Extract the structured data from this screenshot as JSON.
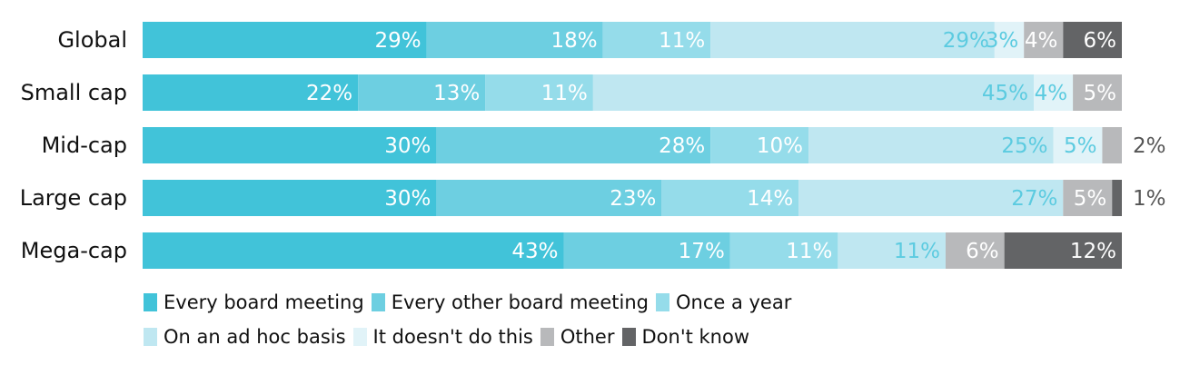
{
  "chart_data": {
    "type": "bar",
    "orientation": "horizontal",
    "stacked": true,
    "categories": [
      "Global",
      "Small cap",
      "Mid-cap",
      "Large cap",
      "Mega-cap"
    ],
    "series": [
      {
        "name": "Every board meeting",
        "color": "#41c3d9",
        "values": [
          29,
          22,
          30,
          30,
          43
        ],
        "labels": [
          "29%",
          "22%",
          "30%",
          "30%",
          "43%"
        ]
      },
      {
        "name": "Every other board meeting",
        "color": "#6dcfe1",
        "values": [
          18,
          13,
          28,
          23,
          17
        ],
        "labels": [
          "18%",
          "13%",
          "28%",
          "23%",
          "17%"
        ]
      },
      {
        "name": "Once a year",
        "color": "#95dcea",
        "values": [
          11,
          11,
          10,
          14,
          11
        ],
        "labels": [
          "11%",
          "11%",
          "10%",
          "14%",
          "11%"
        ]
      },
      {
        "name": "On an ad hoc basis",
        "color": "#bfe7f1",
        "values": [
          29,
          45,
          25,
          27,
          11
        ],
        "labels": [
          "29%",
          "45%",
          "25%",
          "27%",
          "11%"
        ]
      },
      {
        "name": "It doesn't do this",
        "color": "#e1f3f8",
        "values": [
          3,
          4,
          5,
          0,
          0
        ],
        "labels": [
          "3%",
          "4%",
          "5%",
          "",
          ""
        ]
      },
      {
        "name": "Other",
        "color": "#b8b9bb",
        "values": [
          4,
          5,
          2,
          5,
          6
        ],
        "labels": [
          "4%",
          "5%",
          "2%",
          "5%",
          "6%"
        ]
      },
      {
        "name": "Don't know",
        "color": "#636466",
        "values": [
          6,
          0,
          0,
          1,
          12
        ],
        "labels": [
          "6%",
          "",
          "",
          "1%",
          "12%"
        ]
      }
    ],
    "xlim": [
      0,
      100
    ],
    "grid": false,
    "legend_position": "bottom"
  }
}
